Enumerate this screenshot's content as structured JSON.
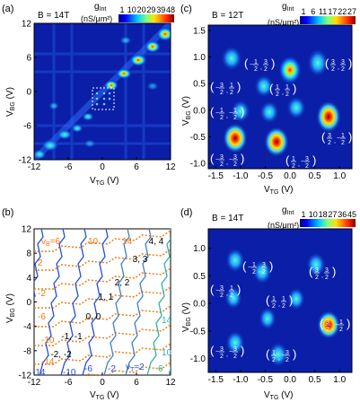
{
  "panels": {
    "a": {
      "label": "(a)",
      "field": "B = 14T",
      "cbar_title": "g",
      "cbar_title_sub": "Int",
      "cbar_unit": "(nS/μm²)",
      "cbar_ticks": [
        "1",
        "10",
        "20",
        "29",
        "39",
        "48"
      ],
      "xlabel": "V",
      "xlabel_sub": "TG",
      "xunit": " (V)",
      "ylabel": "V",
      "ylabel_sub": "BG",
      "yunit": " (V)",
      "xticks": [
        "-12",
        "-6",
        "0",
        "6",
        "12"
      ],
      "yticks": [
        "12",
        "6",
        "0",
        "-6",
        "-12"
      ]
    },
    "b": {
      "label": "(b)",
      "xlabel": "V",
      "xlabel_sub": "TG",
      "xunit": " (V)",
      "ylabel": "V",
      "ylabel_sub": "BG",
      "yunit": " (V)",
      "xticks": [
        "-12",
        "-6",
        "0",
        "6",
        "12"
      ],
      "yticks": [
        "12",
        "8",
        "4",
        "0",
        "-4",
        "-8",
        "-12"
      ],
      "nu_b_label": "ν",
      "nu_b_sub": "B",
      "nu_b_val": "=6",
      "nu_t_label": "ν",
      "nu_t_sub": "T",
      "nu_t_val": "=2",
      "orange_labels": [
        "10",
        "14",
        "2",
        "-2",
        "-6",
        "-10",
        "-14"
      ],
      "blue_labels": [
        "-14",
        "-10",
        "-6",
        "-2",
        "6",
        "10",
        "14"
      ],
      "pair_labels": [
        "4, 4",
        "3, 3",
        "2, 2",
        "1, 1",
        "0, 0",
        "-1, -1",
        "-2, -2"
      ]
    },
    "c": {
      "label": "(c)",
      "field": "B = 12T",
      "cbar_title": "g",
      "cbar_title_sub": "Int",
      "cbar_unit": "(nS/μm²)",
      "cbar_ticks": [
        "1",
        "6",
        "11",
        "17",
        "22",
        "27"
      ],
      "xlabel": "V",
      "xlabel_sub": "TG",
      "xunit": " (V)",
      "ylabel": "V",
      "ylabel_sub": "BG",
      "yunit": " (V)",
      "xticks": [
        "-1.5",
        "-1.0",
        "-0.5",
        "0.0",
        "0.5",
        "1.0"
      ],
      "yticks": [
        "1.5",
        "1.0",
        "0.5",
        "0.0",
        "-0.5",
        "-1.0"
      ]
    },
    "d": {
      "label": "(d)",
      "field": "B = 14T",
      "cbar_title": "g",
      "cbar_title_sub": "Int",
      "cbar_unit": "(nS/μm²)",
      "cbar_ticks": [
        "1",
        "10",
        "18",
        "27",
        "36",
        "45"
      ],
      "xlabel": "V",
      "xlabel_sub": "TG",
      "xunit": " (V)",
      "ylabel": "V",
      "ylabel_sub": "BG",
      "yunit": " (V)",
      "xticks": [
        "-1.5",
        "-1.0",
        "-0.5",
        "0.0",
        "0.5",
        "1.0"
      ],
      "yticks": [
        "1.0",
        "0.5",
        "0.0",
        "-0.5",
        "-1.0"
      ]
    }
  },
  "colors": {
    "map_bg": "#0a1ea8",
    "orange": "#f07a10",
    "blue": "#2050d8",
    "teal": "#30b0a8"
  }
}
